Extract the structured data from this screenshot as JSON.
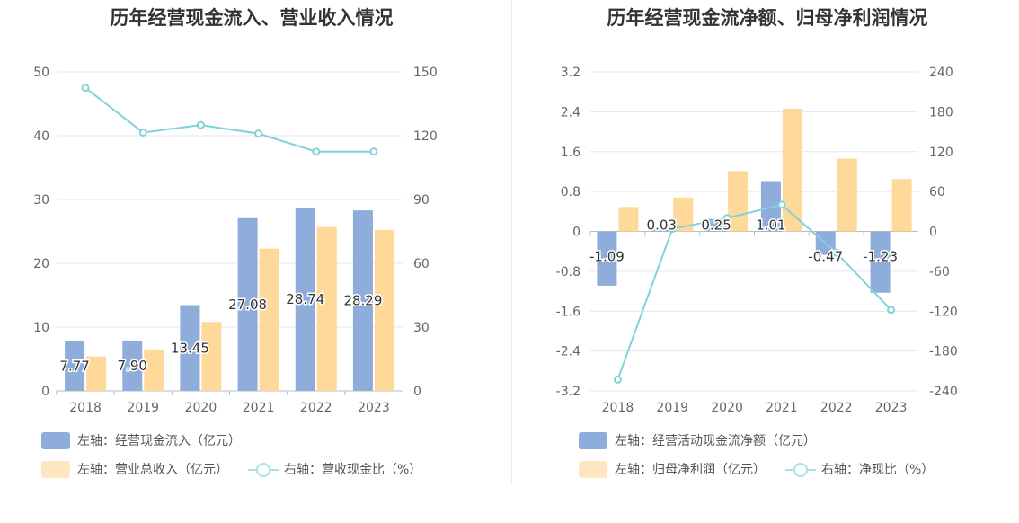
{
  "colors": {
    "bar_primary": "#8eaddb",
    "bar_secondary": "#ffd99a",
    "line": "#7fd3d8",
    "legend_secondary": "#fde6c0",
    "legend_line": "#a6e3e9",
    "grid": "#e4e6ef"
  },
  "chart_data": [
    {
      "type": "bar",
      "title": "历年经营现金流入、营业收入情况",
      "categories": [
        "2018",
        "2019",
        "2020",
        "2021",
        "2022",
        "2023"
      ],
      "left_axis": {
        "ylim": [
          0,
          50
        ],
        "ticks": [
          "0",
          "10",
          "20",
          "30",
          "40",
          "50"
        ]
      },
      "right_axis": {
        "ylim": [
          0,
          150
        ],
        "ticks": [
          "0",
          "30",
          "60",
          "90",
          "120",
          "150"
        ]
      },
      "series": [
        {
          "name": "左轴：经营现金流入（亿元）",
          "type": "bar",
          "axis": "left",
          "values": [
            7.77,
            7.9,
            13.45,
            27.08,
            28.74,
            28.29
          ],
          "labels": [
            "7.77",
            "7.90",
            "13.45",
            "27.08",
            "28.74",
            "28.29"
          ]
        },
        {
          "name": "左轴：营业总收入（亿元）",
          "type": "bar",
          "axis": "left",
          "values": [
            5.4,
            6.5,
            10.8,
            22.3,
            25.7,
            25.2
          ]
        },
        {
          "name": "右轴：营收现金比（%）",
          "type": "line",
          "axis": "right",
          "values": [
            142.5,
            121.5,
            125.0,
            121.0,
            112.5,
            112.5
          ]
        }
      ],
      "legend": [
        [
          "左轴：经营现金流入（亿元）"
        ],
        [
          "左轴：营业总收入（亿元）",
          "右轴：营收现金比（%）"
        ]
      ]
    },
    {
      "type": "bar",
      "title": "历年经营现金流净额、归母净利润情况",
      "categories": [
        "2018",
        "2019",
        "2020",
        "2021",
        "2022",
        "2023"
      ],
      "left_axis": {
        "ylim": [
          -3.2,
          3.2
        ],
        "ticks": [
          "-3.2",
          "-2.4",
          "-1.6",
          "-0.8",
          "0",
          "0.8",
          "1.6",
          "2.4",
          "3.2"
        ]
      },
      "right_axis": {
        "ylim": [
          -240,
          240
        ],
        "ticks": [
          "-240",
          "-180",
          "-120",
          "-60",
          "0",
          "60",
          "120",
          "180",
          "240"
        ]
      },
      "series": [
        {
          "name": "左轴：经营活动现金流净额（亿元）",
          "type": "bar",
          "axis": "left",
          "values": [
            -1.09,
            0.03,
            0.25,
            1.01,
            -0.47,
            -1.23
          ],
          "labels": [
            "-1.09",
            "0.03",
            "0.25",
            "1.01",
            "-0.47",
            "-1.23"
          ]
        },
        {
          "name": "左轴：归母净利润（亿元）",
          "type": "bar",
          "axis": "left",
          "values": [
            0.49,
            0.68,
            1.21,
            2.46,
            1.46,
            1.05
          ]
        },
        {
          "name": "右轴：净现比（%）",
          "type": "line",
          "axis": "right",
          "values": [
            -223,
            4,
            20,
            40,
            -32,
            -118
          ]
        }
      ],
      "legend": [
        [
          "左轴：经营活动现金流净额（亿元）"
        ],
        [
          "左轴：归母净利润（亿元）",
          "右轴：净现比（%）"
        ]
      ]
    }
  ]
}
